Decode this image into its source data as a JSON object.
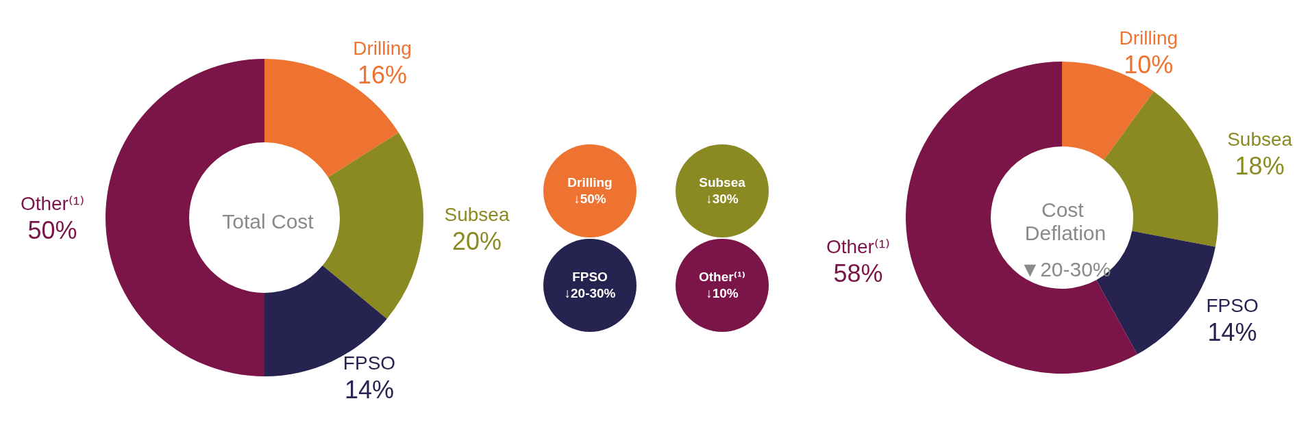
{
  "chart_data": [
    {
      "type": "donut",
      "title": "Total Cost",
      "categories": [
        "Drilling",
        "Subsea",
        "FPSO",
        "Other⁽¹⁾"
      ],
      "values": [
        16,
        20,
        14,
        50
      ],
      "value_labels": [
        "16%",
        "20%",
        "14%",
        "50%"
      ],
      "colors": [
        "#ee7330",
        "#8b8a22",
        "#272350",
        "#7a1449"
      ],
      "legend": false
    },
    {
      "type": "other",
      "categories": [
        "Drilling",
        "Subsea",
        "FPSO",
        "Other⁽¹⁾"
      ],
      "annotations": [
        "↓50%",
        "↓30%",
        "↓20-30%",
        "↓10%"
      ],
      "colors": [
        "#ee7330",
        "#8b8a22",
        "#272350",
        "#7a1449"
      ]
    },
    {
      "type": "donut",
      "title": "Cost Deflation",
      "subtitle": "▼20-30%",
      "categories": [
        "Drilling",
        "Subsea",
        "FPSO",
        "Other⁽¹⁾"
      ],
      "values": [
        10,
        18,
        14,
        58
      ],
      "value_labels": [
        "10%",
        "18%",
        "14%",
        "58%"
      ],
      "colors": [
        "#ee7330",
        "#8b8a22",
        "#272350",
        "#7a1449"
      ],
      "legend": false
    }
  ]
}
